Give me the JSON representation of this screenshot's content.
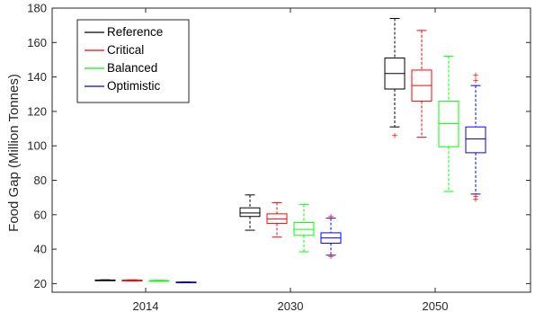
{
  "chart_data": {
    "type": "boxplot",
    "ylabel": "Food Gap (Million Tonnes)",
    "xlabel": "",
    "title": "",
    "ylim": [
      15,
      180
    ],
    "yticks": [
      20,
      40,
      60,
      80,
      100,
      120,
      140,
      160,
      180
    ],
    "categories": [
      "2014",
      "2030",
      "2050"
    ],
    "legend": {
      "placement": "top-left"
    },
    "series": [
      {
        "name": "Reference",
        "color": "#000000",
        "boxes": [
          {
            "category": "2014",
            "whisker_low": 21.8,
            "q1": 21.9,
            "median": 22.0,
            "q3": 22.1,
            "whisker_high": 22.2,
            "outliers": []
          },
          {
            "category": "2030",
            "whisker_low": 51.0,
            "q1": 59.0,
            "median": 61.0,
            "q3": 64.0,
            "whisker_high": 71.5,
            "outliers": []
          },
          {
            "category": "2050",
            "whisker_low": 111.0,
            "q1": 133.0,
            "median": 142.0,
            "q3": 151.0,
            "whisker_high": 174.0,
            "outliers": [
              106.0
            ]
          }
        ]
      },
      {
        "name": "Critical",
        "color": "#ff0000",
        "boxes": [
          {
            "category": "2014",
            "whisker_low": 21.6,
            "q1": 21.8,
            "median": 21.9,
            "q3": 22.0,
            "whisker_high": 22.2,
            "outliers": []
          },
          {
            "category": "2030",
            "whisker_low": 47.0,
            "q1": 55.0,
            "median": 57.5,
            "q3": 60.5,
            "whisker_high": 67.0,
            "outliers": []
          },
          {
            "category": "2050",
            "whisker_low": 105.0,
            "q1": 126.0,
            "median": 135.0,
            "q3": 144.0,
            "whisker_high": 167.0,
            "outliers": []
          }
        ]
      },
      {
        "name": "Balanced",
        "color": "#00ff00",
        "boxes": [
          {
            "category": "2014",
            "whisker_low": 21.5,
            "q1": 21.6,
            "median": 21.7,
            "q3": 21.8,
            "whisker_high": 21.9,
            "outliers": []
          },
          {
            "category": "2030",
            "whisker_low": 38.5,
            "q1": 48.0,
            "median": 51.5,
            "q3": 55.5,
            "whisker_high": 66.0,
            "outliers": []
          },
          {
            "category": "2050",
            "whisker_low": 73.5,
            "q1": 99.5,
            "median": 113.0,
            "q3": 126.0,
            "whisker_high": 152.0,
            "outliers": []
          }
        ]
      },
      {
        "name": "Optimistic",
        "color": "#0000ff",
        "boxes": [
          {
            "category": "2014",
            "whisker_low": 20.6,
            "q1": 20.7,
            "median": 20.8,
            "q3": 20.9,
            "whisker_high": 21.0,
            "outliers": []
          },
          {
            "category": "2030",
            "whisker_low": 36.5,
            "q1": 43.5,
            "median": 46.5,
            "q3": 49.5,
            "whisker_high": 58.0,
            "outliers": [
              59.0,
              36.0
            ]
          },
          {
            "category": "2050",
            "whisker_low": 72.0,
            "q1": 96.0,
            "median": 104.0,
            "q3": 111.0,
            "whisker_high": 135.0,
            "outliers": [
              141.0,
              138.0,
              71.0,
              69.0
            ]
          }
        ]
      }
    ]
  }
}
